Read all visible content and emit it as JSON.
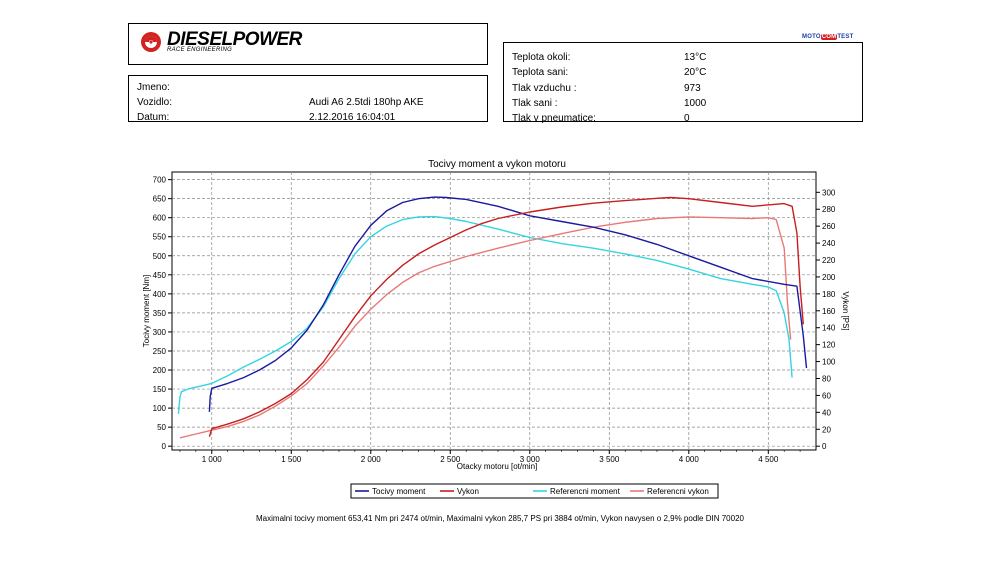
{
  "header": {
    "brand": "DIESELPOWER",
    "brand_sub": "RACE ENGINEERING",
    "badge": {
      "moto": "MOTO",
      "com": "COM",
      "test": "TEST"
    }
  },
  "vehicle": {
    "rows": [
      {
        "label": "Jmeno:",
        "value": ""
      },
      {
        "label": "Vozidlo:",
        "value": "Audi A6 2.5tdi 180hp AKE"
      },
      {
        "label": "Datum:",
        "value": "2.12.2016 16:04:01"
      }
    ]
  },
  "conditions": {
    "rows": [
      {
        "label": "Teplota okoli:",
        "value": "13°C"
      },
      {
        "label": "Teplota sani:",
        "value": "20°C"
      },
      {
        "label": "Tlak vzduchu :",
        "value": "973"
      },
      {
        "label": "Tlak sani :",
        "value": "1000"
      },
      {
        "label": "Tlak v pneumatice:",
        "value": "0"
      }
    ]
  },
  "colors": {
    "torque": "#1a1aa0",
    "power": "#c81e1e",
    "ref_torque": "#33d6e0",
    "ref_power": "#e87878"
  },
  "chart_data": {
    "type": "line",
    "title": "Tocivy moment a vykon motoru",
    "xlabel": "Otacky motoru [ot/min]",
    "ylabel": "Tocivy moment [Nm]",
    "y2label": "Vykon [PS]",
    "xlim": [
      750,
      4800
    ],
    "ylim": [
      -10,
      720
    ],
    "y2lim": [
      -4.5,
      324
    ],
    "x_ticks": [
      1000,
      1500,
      2000,
      2500,
      3000,
      3500,
      4000,
      4500
    ],
    "x_tick_labels": [
      "1 000",
      "1 500",
      "2 000",
      "2 500",
      "3 000",
      "3 500",
      "4 000",
      "4 500"
    ],
    "y_ticks": [
      0,
      50,
      100,
      150,
      200,
      250,
      300,
      350,
      400,
      450,
      500,
      550,
      600,
      650,
      700
    ],
    "y2_ticks": [
      0,
      20,
      40,
      60,
      80,
      100,
      120,
      140,
      160,
      180,
      200,
      220,
      240,
      260,
      280,
      300
    ],
    "grid": true,
    "legend_position": "bottom",
    "series": [
      {
        "name": "Tocivy moment",
        "axis": "left",
        "color_key": "torque",
        "x": [
          985,
          990,
          1000,
          1100,
          1200,
          1300,
          1400,
          1500,
          1600,
          1700,
          1800,
          1900,
          2000,
          2100,
          2200,
          2300,
          2400,
          2474,
          2600,
          2800,
          3000,
          3200,
          3400,
          3600,
          3800,
          4000,
          4200,
          4400,
          4600,
          4680,
          4720,
          4740
        ],
        "y": [
          90,
          130,
          152,
          165,
          180,
          200,
          225,
          258,
          305,
          370,
          450,
          525,
          580,
          618,
          640,
          650,
          654,
          653,
          648,
          630,
          605,
          590,
          575,
          555,
          530,
          500,
          470,
          440,
          425,
          420,
          290,
          205
        ]
      },
      {
        "name": "Vykon",
        "axis": "left",
        "color_key": "power",
        "x": [
          985,
          1000,
          1100,
          1200,
          1300,
          1400,
          1500,
          1600,
          1700,
          1800,
          1900,
          2000,
          2100,
          2200,
          2300,
          2400,
          2500,
          2600,
          2700,
          2800,
          3000,
          3200,
          3400,
          3600,
          3800,
          3884,
          4000,
          4200,
          4400,
          4600,
          4650,
          4680,
          4700,
          4720
        ],
        "y": [
          25,
          46,
          58,
          72,
          90,
          112,
          138,
          175,
          220,
          280,
          340,
          395,
          438,
          475,
          505,
          528,
          548,
          568,
          585,
          598,
          615,
          628,
          638,
          645,
          651,
          653,
          650,
          640,
          630,
          637,
          630,
          560,
          420,
          320
        ]
      },
      {
        "name": "Referencni moment",
        "axis": "left",
        "color_key": "ref_torque",
        "x": [
          790,
          800,
          810,
          850,
          900,
          1000,
          1100,
          1200,
          1300,
          1400,
          1500,
          1600,
          1700,
          1800,
          1900,
          2000,
          2100,
          2200,
          2300,
          2400,
          2500,
          2600,
          2800,
          3000,
          3200,
          3400,
          3600,
          3800,
          4000,
          4200,
          4400,
          4500,
          4550,
          4600,
          4630,
          4650
        ],
        "y": [
          85,
          130,
          143,
          150,
          155,
          165,
          185,
          208,
          228,
          250,
          275,
          310,
          365,
          440,
          505,
          550,
          578,
          595,
          602,
          603,
          598,
          590,
          570,
          548,
          532,
          520,
          505,
          488,
          465,
          440,
          425,
          418,
          408,
          350,
          280,
          180
        ]
      },
      {
        "name": "Referencni vykon",
        "axis": "left",
        "color_key": "ref_power",
        "x": [
          800,
          900,
          1000,
          1100,
          1200,
          1300,
          1400,
          1500,
          1600,
          1700,
          1800,
          1900,
          2000,
          2100,
          2200,
          2300,
          2400,
          2600,
          2800,
          3000,
          3200,
          3400,
          3600,
          3800,
          4000,
          4200,
          4400,
          4500,
          4550,
          4600,
          4620,
          4640
        ],
        "y": [
          22,
          32,
          42,
          52,
          65,
          82,
          105,
          132,
          165,
          210,
          260,
          315,
          360,
          398,
          430,
          455,
          472,
          498,
          520,
          540,
          558,
          575,
          588,
          598,
          602,
          600,
          598,
          600,
          595,
          520,
          380,
          280
        ]
      }
    ]
  },
  "footer": {
    "text": "Maximalni tocivy moment 653,41 Nm pri 2474 ot/min,  Maximalni vykon 285,7 PS pri 3884 ot/min,  Vykon navysen o 2,9% podle DIN 70020"
  }
}
